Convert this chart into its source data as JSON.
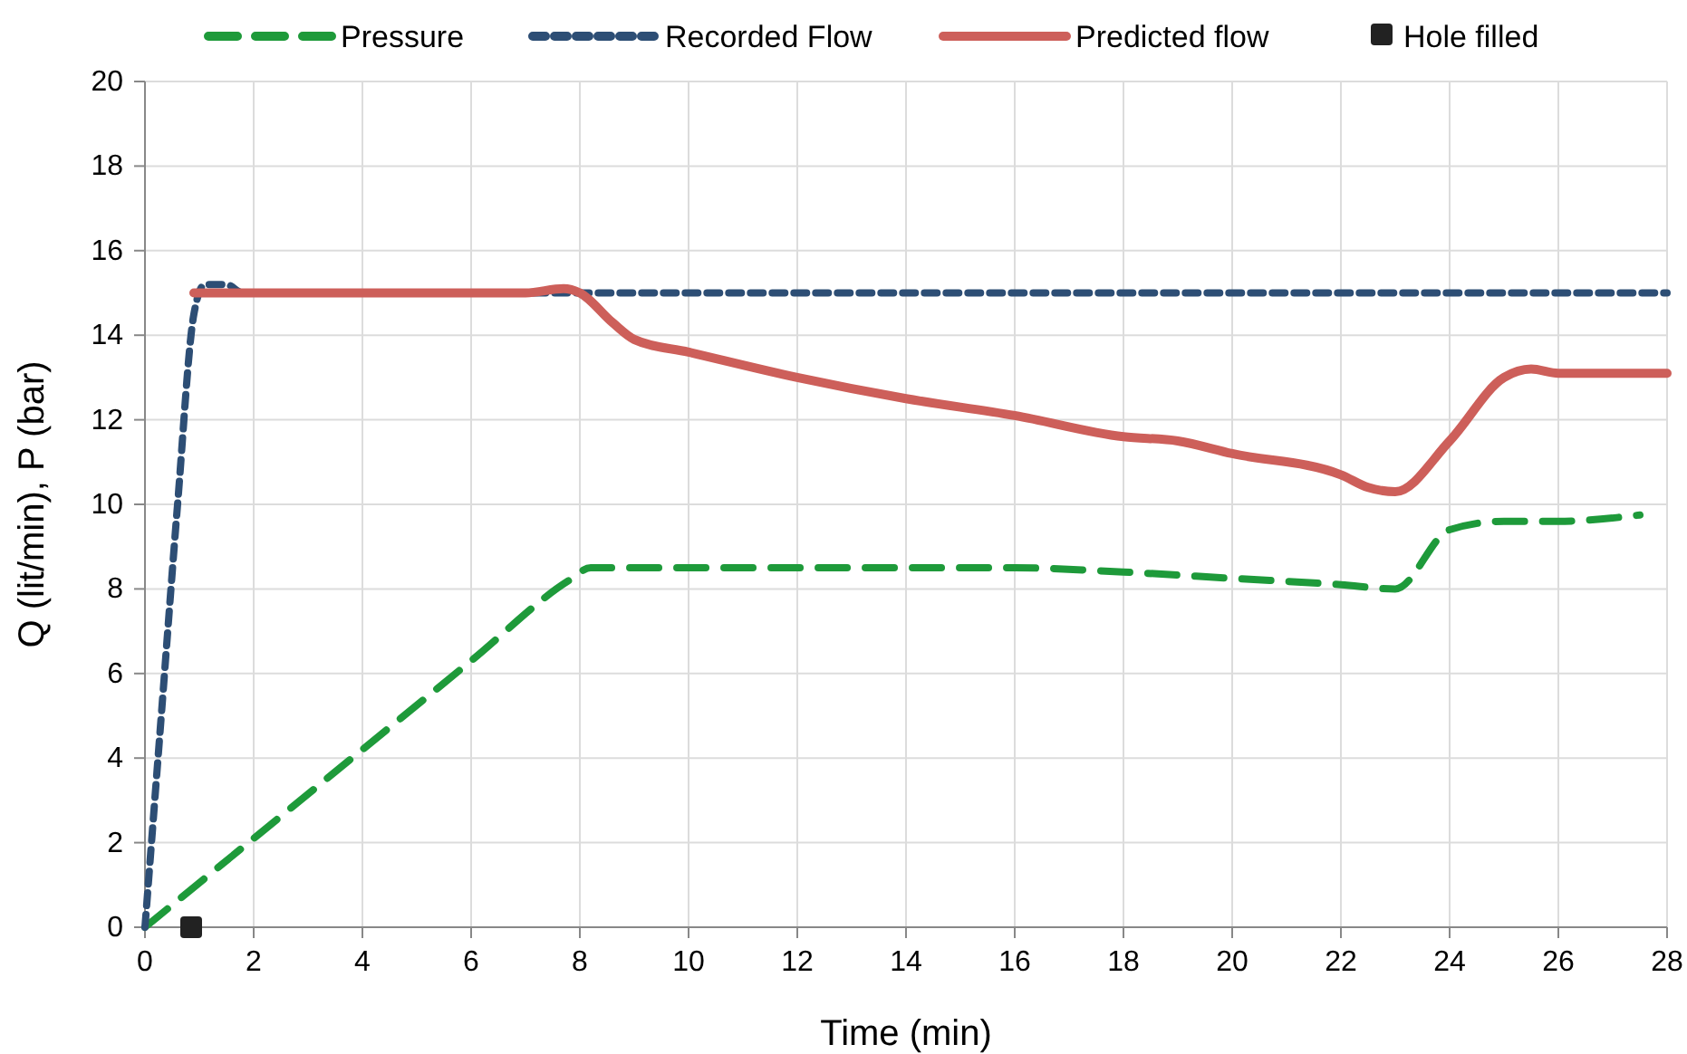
{
  "chart_data": {
    "type": "line",
    "xlabel": "Time (min)",
    "ylabel": "Q (lit/min), P (bar)",
    "xlim": [
      0,
      28
    ],
    "xticks": [
      0,
      2,
      4,
      6,
      8,
      10,
      12,
      14,
      16,
      18,
      20,
      22,
      24,
      26,
      28
    ],
    "ylim": [
      0,
      20
    ],
    "yticks": [
      0,
      2,
      4,
      6,
      8,
      10,
      12,
      14,
      16,
      18,
      20
    ],
    "grid": true,
    "legend": "top",
    "marker": "none",
    "series": [
      {
        "name": "Pressure",
        "color": "#1e9a3a",
        "line_style": "dashed",
        "x": [
          0,
          2,
          4,
          6,
          7.8,
          8.2,
          16,
          18,
          20,
          22,
          23,
          24,
          25,
          26,
          27.5
        ],
        "values": [
          0,
          2.1,
          4.2,
          6.3,
          8.2,
          8.5,
          8.5,
          8.4,
          8.25,
          8.1,
          8,
          9.4,
          9.6,
          9.6,
          9.75
        ]
      },
      {
        "name": "Recorded Flow",
        "color": "#2d4e75",
        "line_style": "dotted",
        "x": [
          0,
          0.3,
          0.6,
          0.9,
          1.1,
          1.5,
          1.8,
          28
        ],
        "values": [
          0,
          5,
          10,
          14.5,
          15.2,
          15.2,
          15,
          15
        ]
      },
      {
        "name": "Predicted flow",
        "color": "#cd5f5a",
        "line_style": "solid",
        "x": [
          0.9,
          7,
          7.7,
          8,
          8.6,
          9,
          10,
          12,
          14,
          16,
          18,
          19,
          20,
          22,
          22.5,
          23,
          24,
          25,
          25.5,
          26,
          28
        ],
        "values": [
          15,
          15,
          15.1,
          15,
          14.3,
          13.9,
          13.6,
          13,
          12.5,
          12.1,
          11.6,
          11.5,
          11.2,
          10.7,
          10.4,
          10.3,
          11.5,
          13,
          13.2,
          13.1,
          13.1
        ]
      },
      {
        "name": "Hole filled",
        "type": "scatter",
        "marker": "square",
        "color": "#222222",
        "x": [
          0.85
        ],
        "values": [
          0
        ]
      }
    ]
  }
}
